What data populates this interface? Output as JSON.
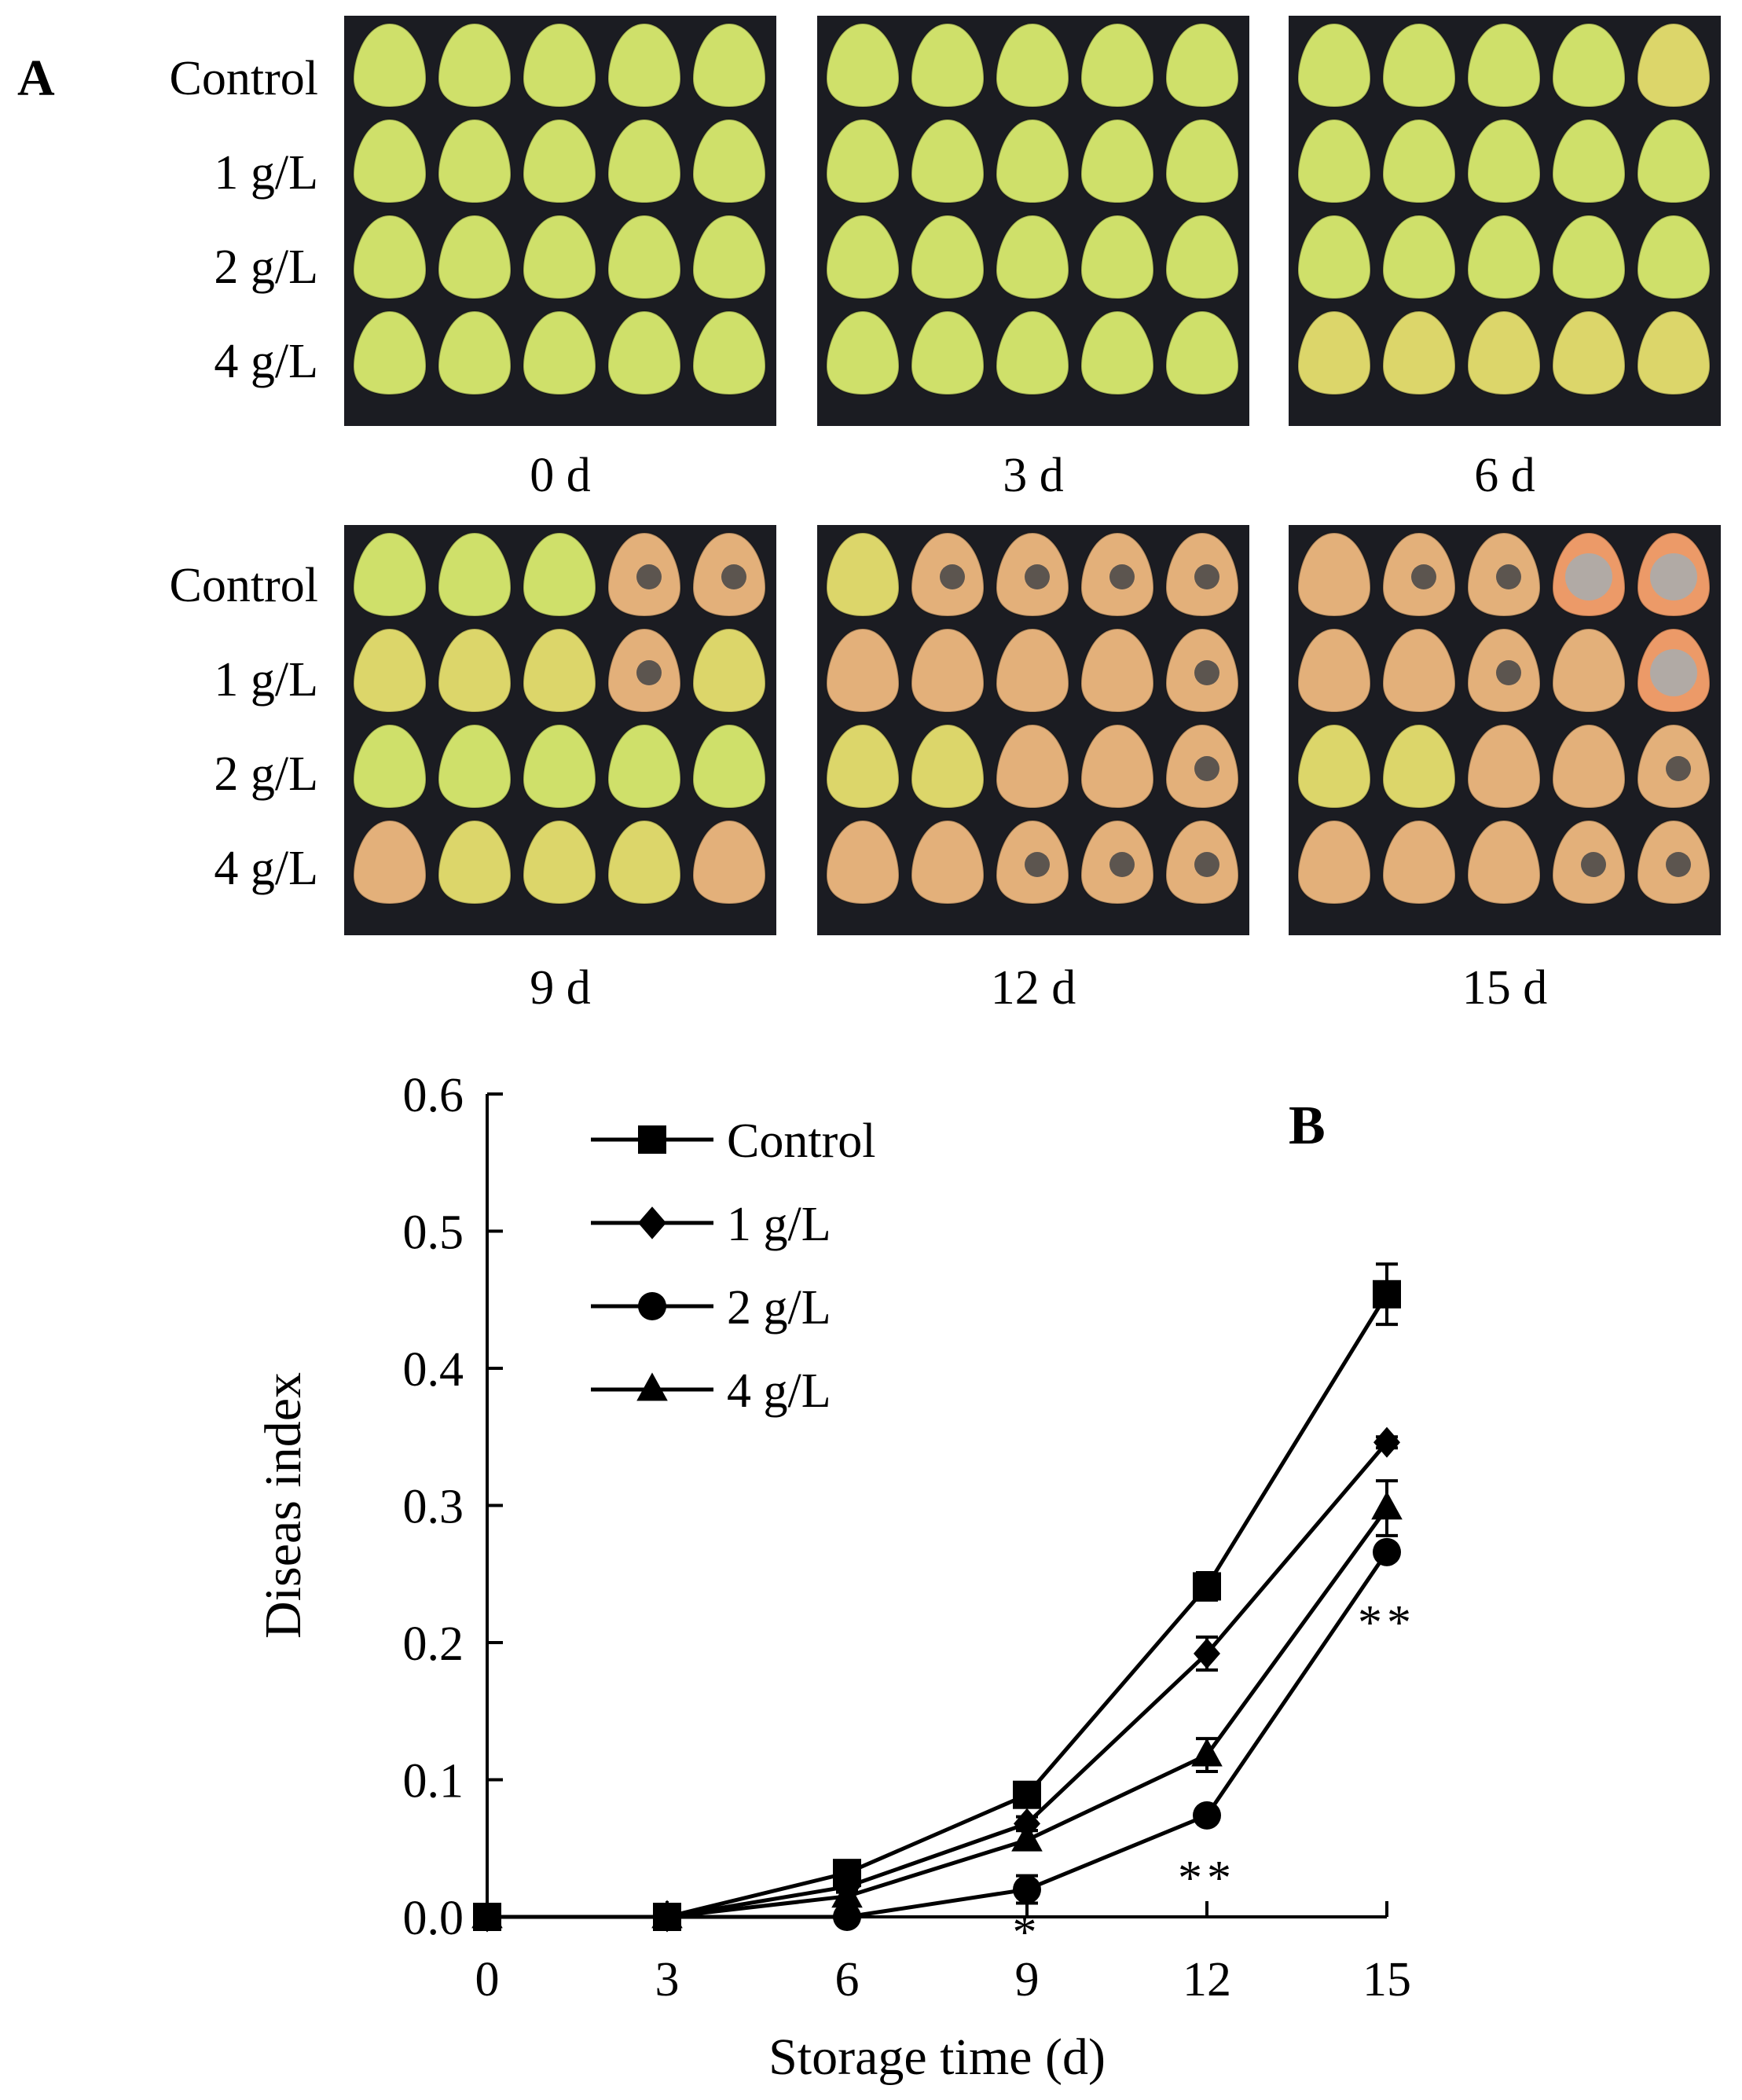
{
  "panel_a": {
    "label": "A",
    "row_labels": [
      "Control",
      "1 g/L",
      "2 g/L",
      "4 g/L"
    ],
    "days": [
      "0 d",
      "3 d",
      "6 d",
      "9 d",
      "12 d",
      "15 d"
    ]
  },
  "colors": {
    "tray": "#1b1c22",
    "fresh": "#cfe06a",
    "yellow": "#dcd66a",
    "ripe": "#e3b07a",
    "orange": "#ec9a68",
    "lesion": "#3a3f45",
    "mold": "#a7adb0",
    "line": "#000000"
  },
  "chart_data": {
    "type": "line",
    "panel_label": "B",
    "x": [
      0,
      3,
      6,
      9,
      12,
      15
    ],
    "xlabel": "Storage time (d)",
    "ylabel": "Diseas index",
    "ylim": [
      0,
      0.6
    ],
    "yticks": [
      "0.0",
      "0.1",
      "0.2",
      "0.3",
      "0.4",
      "0.5",
      "0.6"
    ],
    "xticks": [
      "0",
      "3",
      "6",
      "9",
      "12",
      "15"
    ],
    "series": [
      {
        "name": "Control",
        "marker": "square",
        "values": [
          0,
          0,
          0.032,
          0.089,
          0.241,
          0.454
        ],
        "errors": [
          0,
          0,
          0.005,
          0.006,
          0.01,
          0.022
        ]
      },
      {
        "name": "1 g/L",
        "marker": "diamond",
        "values": [
          0,
          0,
          0.022,
          0.068,
          0.192,
          0.346
        ],
        "errors": [
          0,
          0,
          0.004,
          0.005,
          0.012,
          0.004
        ]
      },
      {
        "name": "2 g/L",
        "marker": "circle",
        "values": [
          0,
          0,
          0,
          0.02,
          0.074,
          0.266
        ],
        "errors": [
          0,
          0,
          0,
          0.01,
          0.003,
          0.004
        ]
      },
      {
        "name": "4 g/L",
        "marker": "triangle",
        "values": [
          0,
          0,
          0.015,
          0.056,
          0.118,
          0.298
        ],
        "errors": [
          0,
          0,
          0.004,
          0.007,
          0.012,
          0.02
        ]
      }
    ],
    "annotations": [
      {
        "x": 9,
        "text": "*"
      },
      {
        "x": 12,
        "text": "**"
      },
      {
        "x": 15,
        "text": "**"
      }
    ],
    "legend_position": "top-left"
  }
}
